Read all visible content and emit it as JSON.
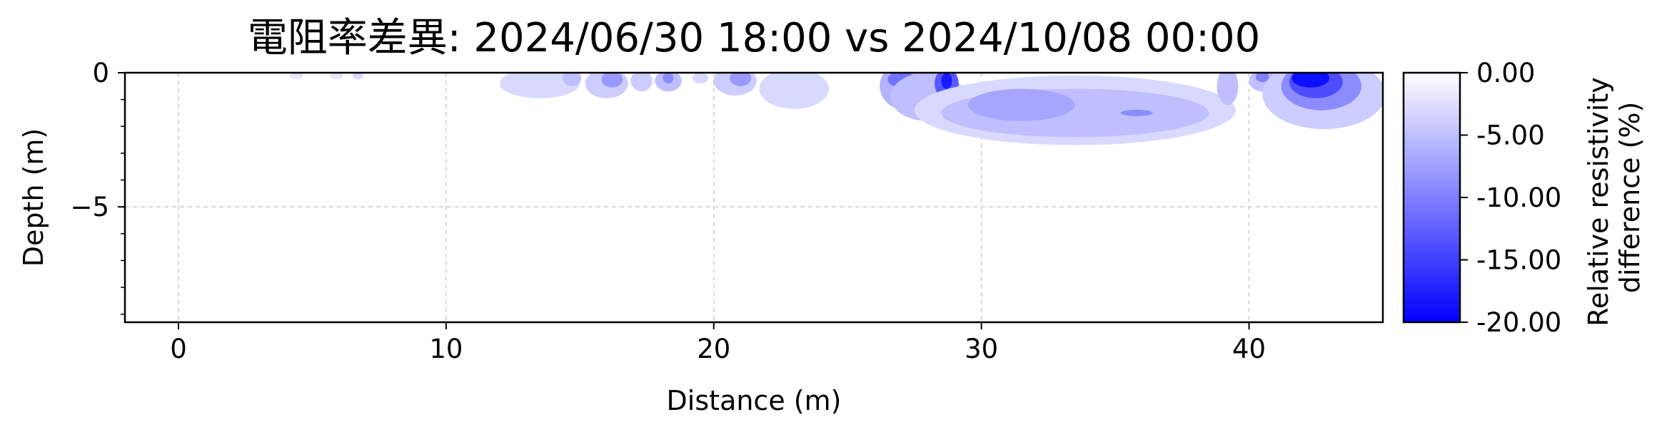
{
  "chart_data": {
    "type": "heatmap",
    "title": "電阻率差異: 2024/06/30 18:00 vs 2024/10/08 00:00",
    "xlabel": "Distance (m)",
    "ylabel": "Depth (m)",
    "xlim": [
      -2,
      45
    ],
    "ylim": [
      -9.3,
      0
    ],
    "xticks": [
      0,
      10,
      20,
      30,
      40
    ],
    "yticks": [
      0,
      -5
    ],
    "grid": true,
    "colorbar": {
      "label_lines": [
        "Relative resistivity",
        "difference (%)"
      ],
      "ticks": [
        "0.00",
        "-5.00",
        "-10.00",
        "-15.00",
        "-20.00"
      ],
      "range": [
        -20,
        0
      ],
      "colors": {
        "top": "#ffffff",
        "bottom": "#0000ff"
      }
    },
    "anomalies": [
      {
        "x": 4.4,
        "depth": 0.1,
        "rx": 0.25,
        "ry": 0.15,
        "value": -2
      },
      {
        "x": 5.9,
        "depth": 0.1,
        "rx": 0.25,
        "ry": 0.15,
        "value": -2
      },
      {
        "x": 6.7,
        "depth": 0.1,
        "rx": 0.2,
        "ry": 0.15,
        "value": -3
      },
      {
        "x": 13.5,
        "depth": 0.4,
        "rx": 1.5,
        "ry": 0.55,
        "value": -3
      },
      {
        "x": 14.7,
        "depth": 0.2,
        "rx": 0.35,
        "ry": 0.3,
        "value": -5
      },
      {
        "x": 16.0,
        "depth": 0.4,
        "rx": 0.8,
        "ry": 0.55,
        "value": -4
      },
      {
        "x": 16.2,
        "depth": 0.25,
        "rx": 0.4,
        "ry": 0.3,
        "value": -8
      },
      {
        "x": 17.3,
        "depth": 0.3,
        "rx": 0.4,
        "ry": 0.4,
        "value": -4
      },
      {
        "x": 18.3,
        "depth": 0.3,
        "rx": 0.5,
        "ry": 0.4,
        "value": -5
      },
      {
        "x": 18.3,
        "depth": 0.2,
        "rx": 0.2,
        "ry": 0.2,
        "value": -9
      },
      {
        "x": 19.5,
        "depth": 0.2,
        "rx": 0.3,
        "ry": 0.2,
        "value": -3
      },
      {
        "x": 20.8,
        "depth": 0.3,
        "rx": 0.8,
        "ry": 0.55,
        "value": -4
      },
      {
        "x": 21.0,
        "depth": 0.2,
        "rx": 0.4,
        "ry": 0.3,
        "value": -8
      },
      {
        "x": 23.0,
        "depth": 0.6,
        "rx": 1.3,
        "ry": 0.75,
        "value": -3
      },
      {
        "x": 27.2,
        "depth": 0.5,
        "rx": 1.0,
        "ry": 0.9,
        "value": -6
      },
      {
        "x": 27.0,
        "depth": 0.25,
        "rx": 0.5,
        "ry": 0.3,
        "value": -11
      },
      {
        "x": 28.0,
        "depth": 0.9,
        "rx": 1.4,
        "ry": 0.9,
        "value": -5
      },
      {
        "x": 28.7,
        "depth": 0.4,
        "rx": 0.45,
        "ry": 0.55,
        "value": -13
      },
      {
        "x": 28.7,
        "depth": 0.3,
        "rx": 0.2,
        "ry": 0.3,
        "value": -18
      },
      {
        "x": 33.5,
        "depth": 1.4,
        "rx": 6.0,
        "ry": 1.3,
        "value": -3
      },
      {
        "x": 33.5,
        "depth": 1.5,
        "rx": 5.0,
        "ry": 0.9,
        "value": -5
      },
      {
        "x": 31.5,
        "depth": 1.2,
        "rx": 2.0,
        "ry": 0.6,
        "value": -7
      },
      {
        "x": 35.8,
        "depth": 1.5,
        "rx": 0.6,
        "ry": 0.12,
        "value": -9
      },
      {
        "x": 39.2,
        "depth": 0.5,
        "rx": 0.4,
        "ry": 0.7,
        "value": -5
      },
      {
        "x": 40.5,
        "depth": 0.3,
        "rx": 0.5,
        "ry": 0.4,
        "value": -5
      },
      {
        "x": 40.5,
        "depth": 0.15,
        "rx": 0.25,
        "ry": 0.2,
        "value": -10
      },
      {
        "x": 42.8,
        "depth": 0.8,
        "rx": 2.3,
        "ry": 1.3,
        "value": -4
      },
      {
        "x": 42.7,
        "depth": 0.5,
        "rx": 1.5,
        "ry": 0.9,
        "value": -9
      },
      {
        "x": 42.5,
        "depth": 0.35,
        "rx": 1.0,
        "ry": 0.6,
        "value": -14
      },
      {
        "x": 42.3,
        "depth": 0.2,
        "rx": 0.7,
        "ry": 0.35,
        "value": -19
      }
    ]
  }
}
